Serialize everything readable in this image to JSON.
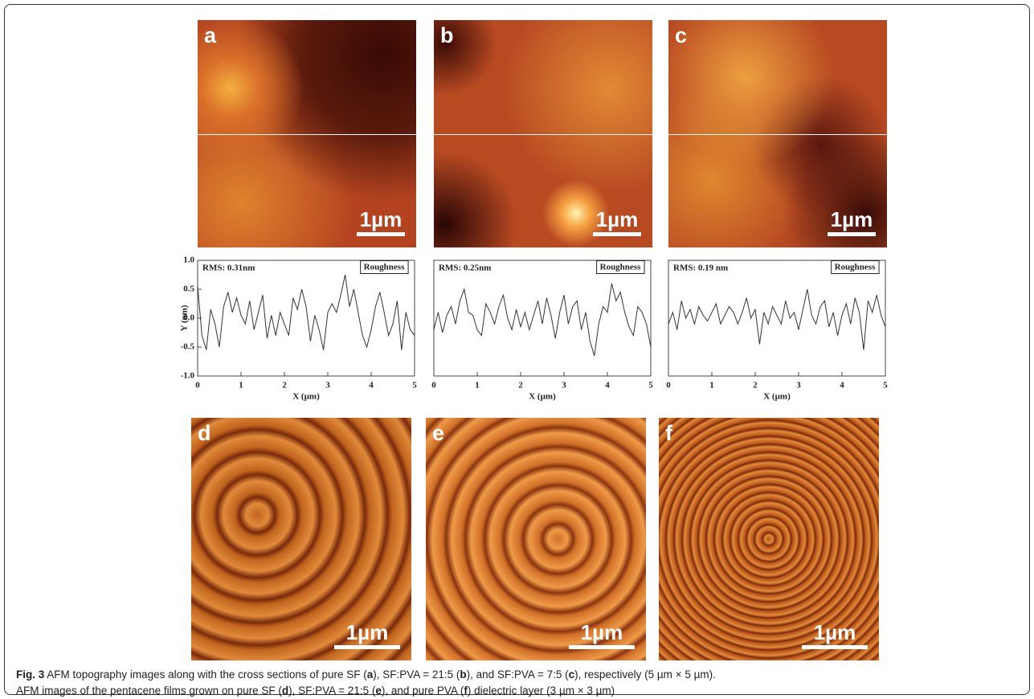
{
  "panels": [
    {
      "label": "a",
      "scale_bar": "1µm"
    },
    {
      "label": "b",
      "scale_bar": "1µm"
    },
    {
      "label": "c",
      "scale_bar": "1µm"
    },
    {
      "label": "d",
      "scale_bar": "1µm"
    },
    {
      "label": "e",
      "scale_bar": "1µm"
    },
    {
      "label": "f",
      "scale_bar": "1µm"
    }
  ],
  "chart_data": [
    {
      "type": "line",
      "annotation": "RMS: 0.31nm",
      "legend_label": "Roughness",
      "xlabel": "X (µm)",
      "ylabel": "Y (nm)",
      "xlim": [
        0,
        5
      ],
      "ylim": [
        -1,
        1
      ],
      "xticks": [
        0,
        1,
        2,
        3,
        4,
        5
      ],
      "yticks": [
        {
          "value": -1,
          "label": "-1.0"
        },
        {
          "value": -0.5,
          "label": "-0.5"
        },
        {
          "value": 0,
          "label": "0.0"
        },
        {
          "value": 0.5,
          "label": "0.5"
        },
        {
          "value": 1,
          "label": "1.0"
        }
      ],
      "color": "#333333",
      "x": [
        0,
        0.1,
        0.2,
        0.3,
        0.4,
        0.5,
        0.6,
        0.7,
        0.8,
        0.9,
        1,
        1.1,
        1.2,
        1.3,
        1.4,
        1.5,
        1.6,
        1.7,
        1.8,
        1.9,
        2,
        2.1,
        2.2,
        2.3,
        2.4,
        2.5,
        2.6,
        2.7,
        2.8,
        2.9,
        3,
        3.1,
        3.2,
        3.3,
        3.4,
        3.5,
        3.6,
        3.7,
        3.8,
        3.9,
        4,
        4.1,
        4.2,
        4.3,
        4.4,
        4.5,
        4.6,
        4.7,
        4.8,
        4.9,
        5
      ],
      "values": [
        0.55,
        -0.3,
        -0.55,
        0.15,
        -0.1,
        -0.5,
        0.2,
        0.45,
        0.1,
        0.35,
        0.05,
        -0.1,
        0.3,
        -0.2,
        0.1,
        0.4,
        -0.35,
        0.05,
        -0.3,
        0.1,
        -0.1,
        -0.3,
        0.35,
        0.15,
        0.5,
        0.2,
        -0.4,
        0.05,
        -0.2,
        -0.55,
        0.1,
        0.25,
        0.1,
        0.4,
        0.75,
        0.2,
        0.5,
        0.1,
        -0.3,
        -0.5,
        -0.2,
        0.2,
        0.45,
        0.1,
        -0.3,
        -0.1,
        0.3,
        -0.55,
        0.1,
        -0.2,
        -0.3
      ]
    },
    {
      "type": "line",
      "annotation": "RMS: 0.25nm",
      "legend_label": "Roughness",
      "xlabel": "X (µm)",
      "xlim": [
        0,
        5
      ],
      "ylim": [
        -1,
        1
      ],
      "xticks": [
        0,
        1,
        2,
        3,
        4,
        5
      ],
      "color": "#333333",
      "x": [
        0,
        0.1,
        0.2,
        0.3,
        0.4,
        0.5,
        0.6,
        0.7,
        0.8,
        0.9,
        1,
        1.1,
        1.2,
        1.3,
        1.4,
        1.5,
        1.6,
        1.7,
        1.8,
        1.9,
        2,
        2.1,
        2.2,
        2.3,
        2.4,
        2.5,
        2.6,
        2.7,
        2.8,
        2.9,
        3,
        3.1,
        3.2,
        3.3,
        3.4,
        3.5,
        3.6,
        3.7,
        3.8,
        3.9,
        4,
        4.1,
        4.2,
        4.3,
        4.4,
        4.5,
        4.6,
        4.7,
        4.8,
        4.9,
        5
      ],
      "values": [
        -0.2,
        0.1,
        -0.25,
        0.05,
        0.2,
        -0.1,
        0.3,
        0.5,
        0.1,
        0.05,
        -0.2,
        -0.3,
        0.25,
        0.1,
        -0.1,
        0.2,
        0.4,
        0,
        -0.2,
        0.15,
        -0.15,
        0.1,
        -0.2,
        0.05,
        0.3,
        -0.1,
        0.35,
        0.05,
        -0.35,
        0.1,
        0.4,
        -0.1,
        0.2,
        0.3,
        -0.2,
        0.1,
        -0.4,
        -0.65,
        -0.1,
        0.2,
        0.1,
        0.6,
        0.3,
        0.45,
        0.1,
        -0.15,
        -0.3,
        0.2,
        0.1,
        -0.1,
        -0.5
      ]
    },
    {
      "type": "line",
      "annotation": "RMS: 0.19 nm",
      "legend_label": "Roughness",
      "xlabel": "X (µm)",
      "xlim": [
        0,
        5
      ],
      "ylim": [
        -1,
        1
      ],
      "xticks": [
        0,
        1,
        2,
        3,
        4,
        5
      ],
      "color": "#333333",
      "x": [
        0,
        0.1,
        0.2,
        0.3,
        0.4,
        0.5,
        0.6,
        0.7,
        0.8,
        0.9,
        1,
        1.1,
        1.2,
        1.3,
        1.4,
        1.5,
        1.6,
        1.7,
        1.8,
        1.9,
        2,
        2.1,
        2.2,
        2.3,
        2.4,
        2.5,
        2.6,
        2.7,
        2.8,
        2.9,
        3,
        3.1,
        3.2,
        3.3,
        3.4,
        3.5,
        3.6,
        3.7,
        3.8,
        3.9,
        4,
        4.1,
        4.2,
        4.3,
        4.4,
        4.5,
        4.6,
        4.7,
        4.8,
        4.9,
        5
      ],
      "values": [
        -0.1,
        0.1,
        -0.2,
        0.3,
        0.0,
        0.15,
        -0.1,
        0.2,
        0.05,
        -0.05,
        0.1,
        0.25,
        -0.1,
        0.05,
        0.2,
        0.1,
        -0.1,
        0.1,
        0.35,
        0.0,
        0.15,
        -0.45,
        0.1,
        -0.1,
        0.2,
        0.05,
        -0.1,
        0.3,
        0.0,
        0.1,
        -0.2,
        0.15,
        0.5,
        0.05,
        -0.1,
        0.2,
        0.3,
        -0.15,
        0.1,
        -0.3,
        0.05,
        0.25,
        -0.1,
        0.35,
        0.1,
        -0.55,
        0.3,
        0.1,
        0.4,
        0.05,
        -0.15
      ]
    }
  ],
  "caption": {
    "label": "Fig. 3",
    "text": [
      " AFM topography images along with the cross sections of pure SF (",
      "a",
      "), SF:PVA = 21:5 (",
      "b",
      "), and SF:PVA = 7:5 (",
      "c",
      "), respectively (5 µm × 5 µm).",
      "AFM images of the pentacene films grown on pure SF (",
      "d",
      "), SF:PVA = 21:5 (",
      "e",
      "), and pure PVA (",
      "f",
      ") dielectric layer (3 µm × 3 µm)"
    ]
  }
}
